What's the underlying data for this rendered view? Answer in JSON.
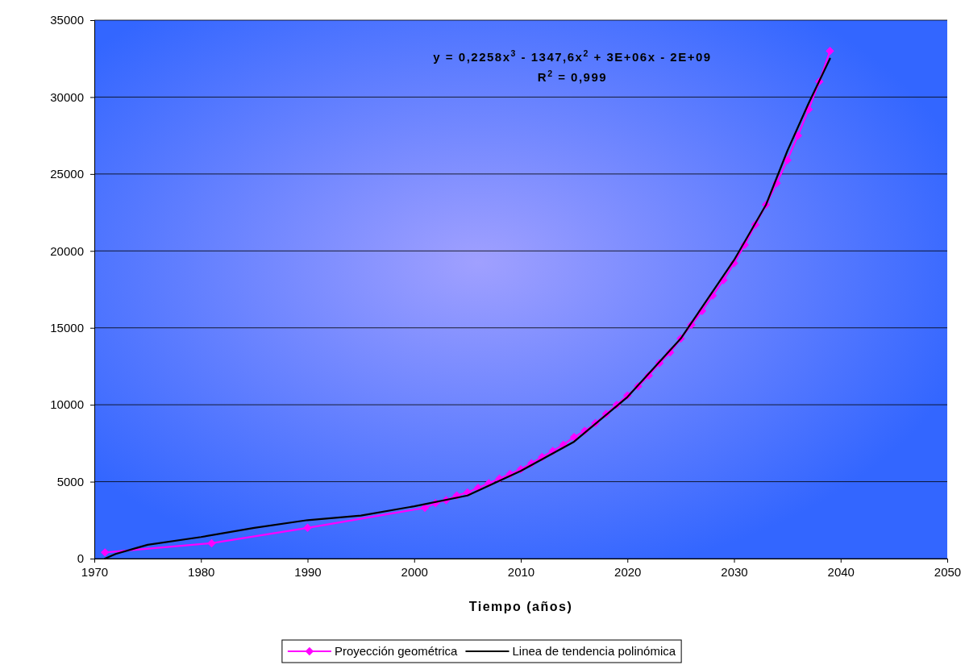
{
  "chart_data": {
    "type": "line",
    "xlabel": "Tiempo (años)",
    "xlim": [
      1970,
      2050
    ],
    "xticks": [
      1970,
      1980,
      1990,
      2000,
      2010,
      2020,
      2030,
      2040,
      2050
    ],
    "ylim": [
      0,
      35000
    ],
    "yticks": [
      0,
      5000,
      10000,
      15000,
      20000,
      25000,
      30000,
      35000
    ],
    "grid": "y",
    "legend": "bottom",
    "line_style": "solid",
    "annotations": [
      "y = 0,2258x$^{3}$ - 1347,6x$^{2}$ + 3E+06x - 2E+09",
      "R$^{2}$ = 0,999"
    ],
    "series": [
      {
        "name": "Proyección geométrica",
        "color": "#ff00ff",
        "marker": "diamond",
        "x": [
          1971,
          1981,
          1990,
          2001,
          2002,
          2003,
          2004,
          2005,
          2006,
          2007,
          2008,
          2009,
          2010,
          2011,
          2012,
          2013,
          2014,
          2015,
          2016,
          2017,
          2018,
          2019,
          2020,
          2021,
          2022,
          2023,
          2024,
          2025,
          2026,
          2027,
          2028,
          2029,
          2030,
          2031,
          2032,
          2033,
          2034,
          2035,
          2036,
          2037,
          2038,
          2039
        ],
        "values": [
          400,
          1000,
          2000,
          3300,
          3600,
          3800,
          4100,
          4300,
          4600,
          4900,
          5200,
          5500,
          5800,
          6200,
          6600,
          7000,
          7400,
          7900,
          8300,
          8800,
          9400,
          10000,
          10600,
          11200,
          11900,
          12700,
          13400,
          14300,
          15200,
          16100,
          17100,
          18100,
          19200,
          20400,
          21700,
          23000,
          24400,
          25900,
          27500,
          29200,
          31000,
          33000
        ]
      },
      {
        "name": "Linea de tendencia polinómica",
        "color": "#000000",
        "type": "line",
        "marker": "none",
        "x": [
          1971,
          1972,
          1974,
          1975,
          1980,
          1985,
          1990,
          1995,
          2000,
          2005,
          2010,
          2015,
          2020,
          2025,
          2030,
          2033,
          2035,
          2037,
          2039
        ],
        "values": [
          0,
          300,
          700,
          900,
          1400,
          2000,
          2500,
          2800,
          3400,
          4100,
          5700,
          7600,
          10500,
          14300,
          19400,
          23000,
          26500,
          29600,
          32500
        ]
      }
    ]
  }
}
